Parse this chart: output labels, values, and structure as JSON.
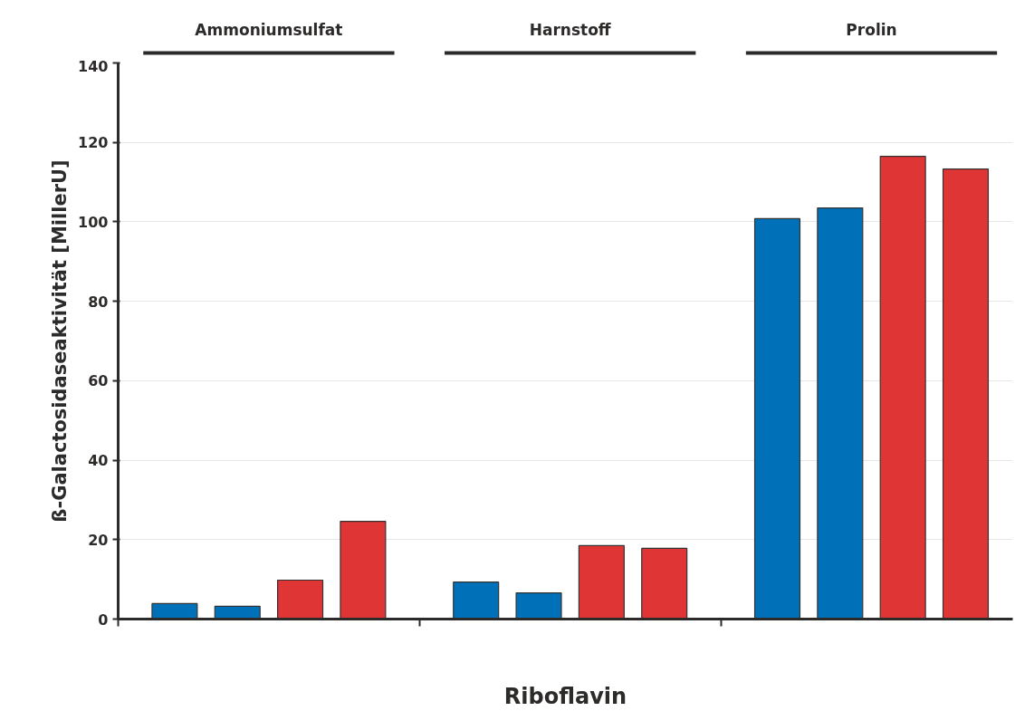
{
  "chart_data": {
    "type": "bar",
    "ylabel": "ß-Galactosidaseaktivität [MillerU]",
    "xlabel": "Riboflavin",
    "categories": [
      null,
      null,
      null,
      null,
      null,
      null,
      null,
      null,
      null,
      null,
      null,
      null
    ],
    "values": [
      3.9,
      3.2,
      9.8,
      24.6,
      9.3,
      6.6,
      18.5,
      17.8,
      100.8,
      103.5,
      116.5,
      113.3
    ],
    "colors": [
      "#0070b8",
      "#0070b8",
      "#e03535",
      "#e03535",
      "#0070b8",
      "#0070b8",
      "#e03535",
      "#e03535",
      "#0070b8",
      "#0070b8",
      "#e03535",
      "#e03535"
    ],
    "annotations": [
      "Ammoniumsulfat",
      "Harnstoff",
      "Prolin"
    ],
    "ylim": [
      0,
      140
    ],
    "yticks": [
      0,
      20,
      40,
      60,
      80,
      100,
      120,
      140
    ],
    "grid": "y"
  }
}
